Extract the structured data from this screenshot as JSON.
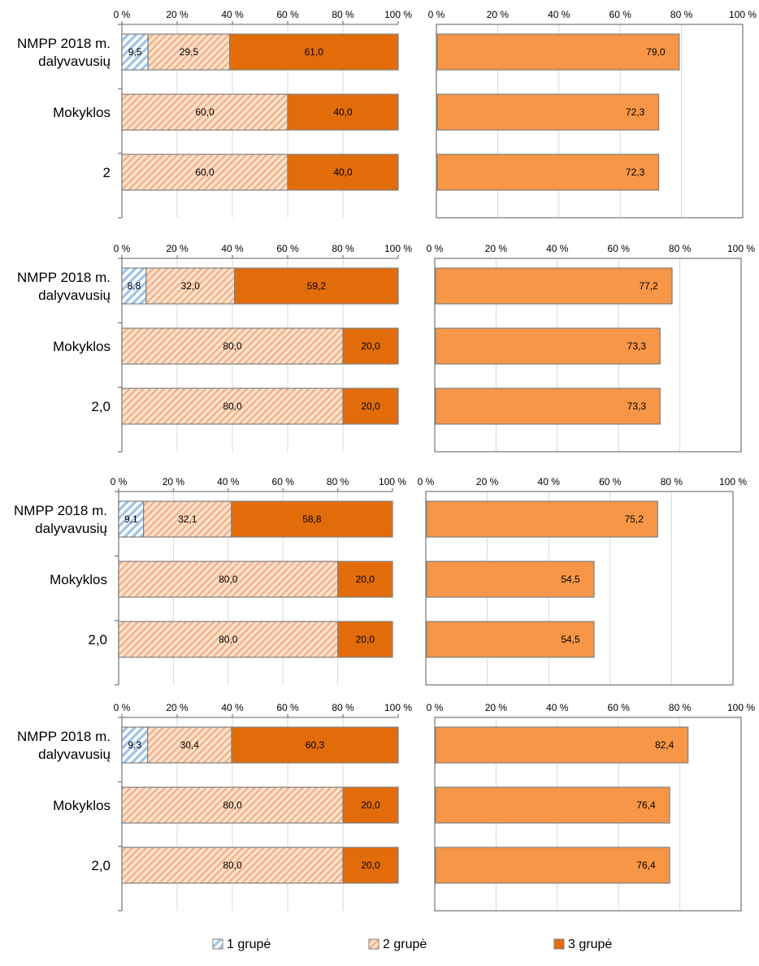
{
  "legend": {
    "items": [
      {
        "label": "1 grupė",
        "pattern": "blue-diag"
      },
      {
        "label": "2 grupė",
        "pattern": "tan-diag"
      },
      {
        "label": "3 grupė",
        "pattern": "solid-orange"
      }
    ]
  },
  "colors": {
    "group3": "#e36c0a",
    "right_bars": "#f79646",
    "group1_stripe": "#9dc3e6",
    "group2_stripe": "#f4b183",
    "frame": "#808080",
    "grid": "#d9d9d9"
  },
  "chart_data": [
    {
      "type": "bar",
      "stacked": true,
      "orientation": "horizontal",
      "categories": [
        "NMPP 2018 m.|dalyvavusių",
        "Mokyklos",
        "2"
      ],
      "xticks": [
        "0 %",
        "20 %",
        "40 %",
        "60 %",
        "80 %",
        "100 %"
      ],
      "xlim": [
        0,
        100
      ],
      "series": [
        {
          "name": "1 grupė",
          "values": [
            9.5,
            0,
            0
          ],
          "labels": [
            "9,5",
            "",
            ""
          ]
        },
        {
          "name": "2 grupė",
          "values": [
            29.5,
            60,
            60
          ],
          "labels": [
            "29,5",
            "60,0",
            "60,0"
          ]
        },
        {
          "name": "3 grupė",
          "values": [
            61,
            40,
            40
          ],
          "labels": [
            "61,0",
            "40,0",
            "40,0"
          ]
        }
      ]
    },
    {
      "type": "bar",
      "orientation": "horizontal",
      "categories": [
        "NMPP 2018 m.|dalyvavusių",
        "Mokyklos",
        "2"
      ],
      "xticks": [
        "0 %",
        "20 %",
        "40 %",
        "60 %",
        "80 %",
        "100 %"
      ],
      "xlim": [
        0,
        100
      ],
      "values": [
        79.0,
        72.3,
        72.3
      ],
      "labels": [
        "79,0",
        "72,3",
        "72,3"
      ]
    },
    {
      "type": "bar",
      "stacked": true,
      "orientation": "horizontal",
      "categories": [
        "NMPP 2018 m.|dalyvavusių",
        "Mokyklos",
        "2,0"
      ],
      "xticks": [
        "0 %",
        "20 %",
        "40 %",
        "60 %",
        "80 %",
        "100 %"
      ],
      "xlim": [
        0,
        100
      ],
      "series": [
        {
          "name": "1 grupė",
          "values": [
            8.8,
            0,
            0
          ],
          "labels": [
            "8,8",
            "",
            ""
          ]
        },
        {
          "name": "2 grupė",
          "values": [
            32,
            80,
            80
          ],
          "labels": [
            "32,0",
            "80,0",
            "80,0"
          ]
        },
        {
          "name": "3 grupė",
          "values": [
            59.2,
            20,
            20
          ],
          "labels": [
            "59,2",
            "20,0",
            "20,0"
          ]
        }
      ]
    },
    {
      "type": "bar",
      "orientation": "horizontal",
      "categories": [
        "NMPP 2018 m.|dalyvavusių",
        "Mokyklos",
        "2,0"
      ],
      "xticks": [
        "0 %",
        "20 %",
        "40 %",
        "60 %",
        "80 %",
        "100 %"
      ],
      "xlim": [
        0,
        100
      ],
      "values": [
        77.2,
        73.3,
        73.3
      ],
      "labels": [
        "77,2",
        "73,3",
        "73,3"
      ]
    },
    {
      "type": "bar",
      "stacked": true,
      "orientation": "horizontal",
      "categories": [
        "NMPP 2018 m.|dalyvavusių",
        "Mokyklos",
        "2,0"
      ],
      "xticks": [
        "0 %",
        "20 %",
        "40 %",
        "60 %",
        "80 %",
        "100 %"
      ],
      "xlim": [
        0,
        100
      ],
      "series": [
        {
          "name": "1 grupė",
          "values": [
            9.1,
            0,
            0
          ],
          "labels": [
            "9,1",
            "",
            ""
          ]
        },
        {
          "name": "2 grupė",
          "values": [
            32.1,
            80,
            80
          ],
          "labels": [
            "32,1",
            "80,0",
            "80,0"
          ]
        },
        {
          "name": "3 grupė",
          "values": [
            58.8,
            20,
            20
          ],
          "labels": [
            "58,8",
            "20,0",
            "20,0"
          ]
        }
      ]
    },
    {
      "type": "bar",
      "orientation": "horizontal",
      "categories": [
        "NMPP 2018 m.|dalyvavusių",
        "Mokyklos",
        "2,0"
      ],
      "xticks": [
        "0 %",
        "20 %",
        "40 %",
        "60 %",
        "80 %",
        "100 %"
      ],
      "xlim": [
        0,
        100
      ],
      "values": [
        75.2,
        54.5,
        54.5
      ],
      "labels": [
        "75,2",
        "54,5",
        "54,5"
      ]
    },
    {
      "type": "bar",
      "stacked": true,
      "orientation": "horizontal",
      "categories": [
        "NMPP 2018 m.|dalyvavusių",
        "Mokyklos",
        "2,0"
      ],
      "xticks": [
        "0 %",
        "20 %",
        "40 %",
        "60 %",
        "80 %",
        "100 %"
      ],
      "xlim": [
        0,
        100
      ],
      "series": [
        {
          "name": "1 grupė",
          "values": [
            9.3,
            0,
            0
          ],
          "labels": [
            "9,3",
            "",
            ""
          ]
        },
        {
          "name": "2 grupė",
          "values": [
            30.4,
            80,
            80
          ],
          "labels": [
            "30,4",
            "80,0",
            "80,0"
          ]
        },
        {
          "name": "3 grupė",
          "values": [
            60.3,
            20,
            20
          ],
          "labels": [
            "60,3",
            "20,0",
            "20,0"
          ]
        }
      ]
    },
    {
      "type": "bar",
      "orientation": "horizontal",
      "categories": [
        "NMPP 2018 m.|dalyvavusių",
        "Mokyklos",
        "2,0"
      ],
      "xticks": [
        "0 %",
        "20 %",
        "40 %",
        "60 %",
        "80 %",
        "100 %"
      ],
      "xlim": [
        0,
        100
      ],
      "values": [
        82.4,
        76.4,
        76.4
      ],
      "labels": [
        "82,4",
        "76,4",
        "76,4"
      ]
    }
  ]
}
